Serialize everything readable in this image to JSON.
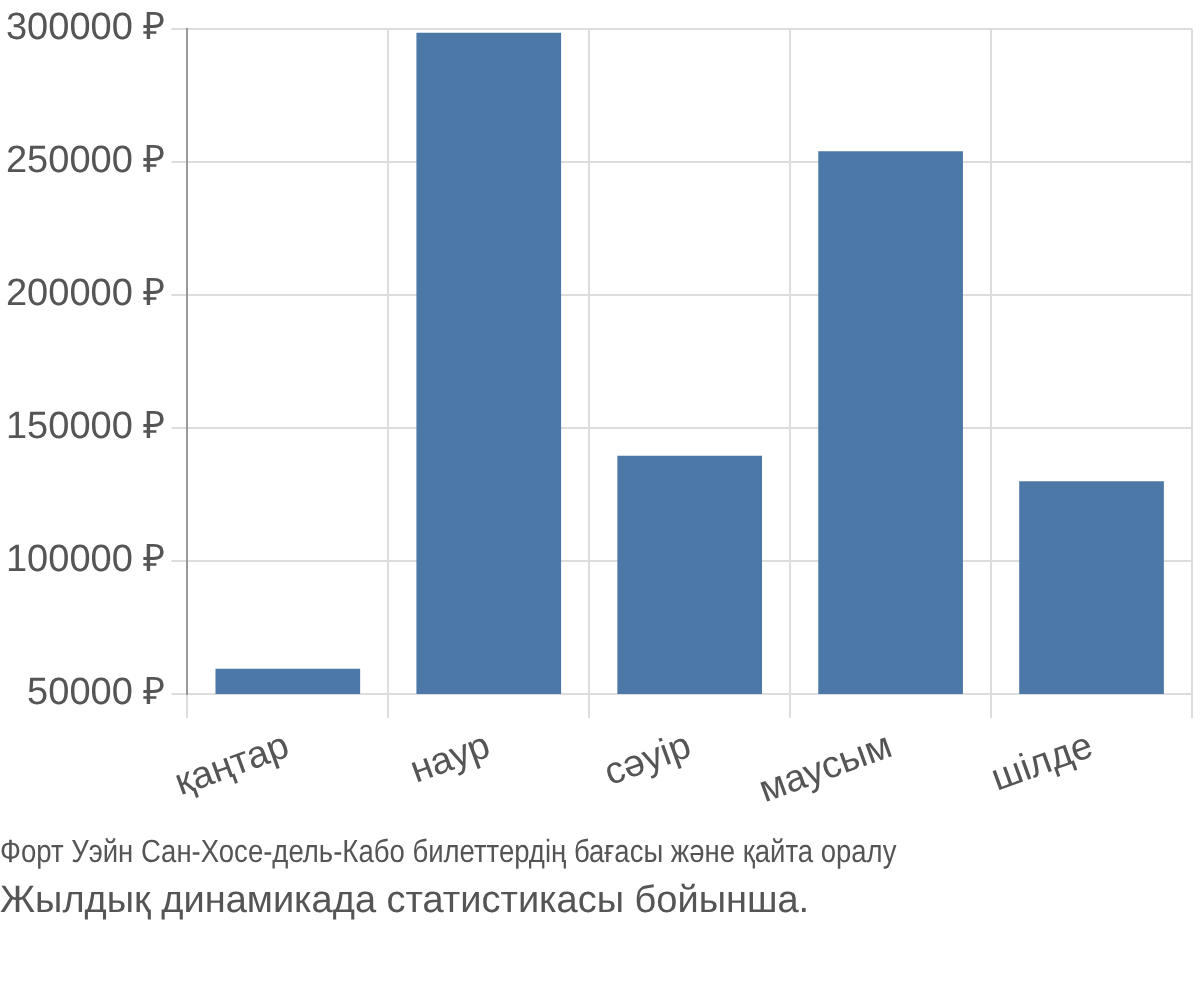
{
  "chart_data": {
    "type": "bar",
    "categories": [
      "қаңтар",
      "наур",
      "сәуір",
      "маусым",
      "шілде"
    ],
    "values": [
      59500,
      298500,
      139500,
      254000,
      130000
    ],
    "color": "#4c78a8",
    "ylim": [
      50000,
      300000
    ],
    "yticks": [
      {
        "value": 50000,
        "label": "50000 ₽"
      },
      {
        "value": 100000,
        "label": "100000 ₽"
      },
      {
        "value": 150000,
        "label": "150000 ₽"
      },
      {
        "value": 200000,
        "label": "200000 ₽"
      },
      {
        "value": 250000,
        "label": "250000 ₽"
      },
      {
        "value": 300000,
        "label": "300000 ₽"
      }
    ],
    "grid": true,
    "annotations": [
      "Форт Уэйн Сан-Хосе-дель-Кабо билеттердің бағасы және қайта оралу",
      "Жылдық динамикада статистикасы бойынша."
    ]
  }
}
